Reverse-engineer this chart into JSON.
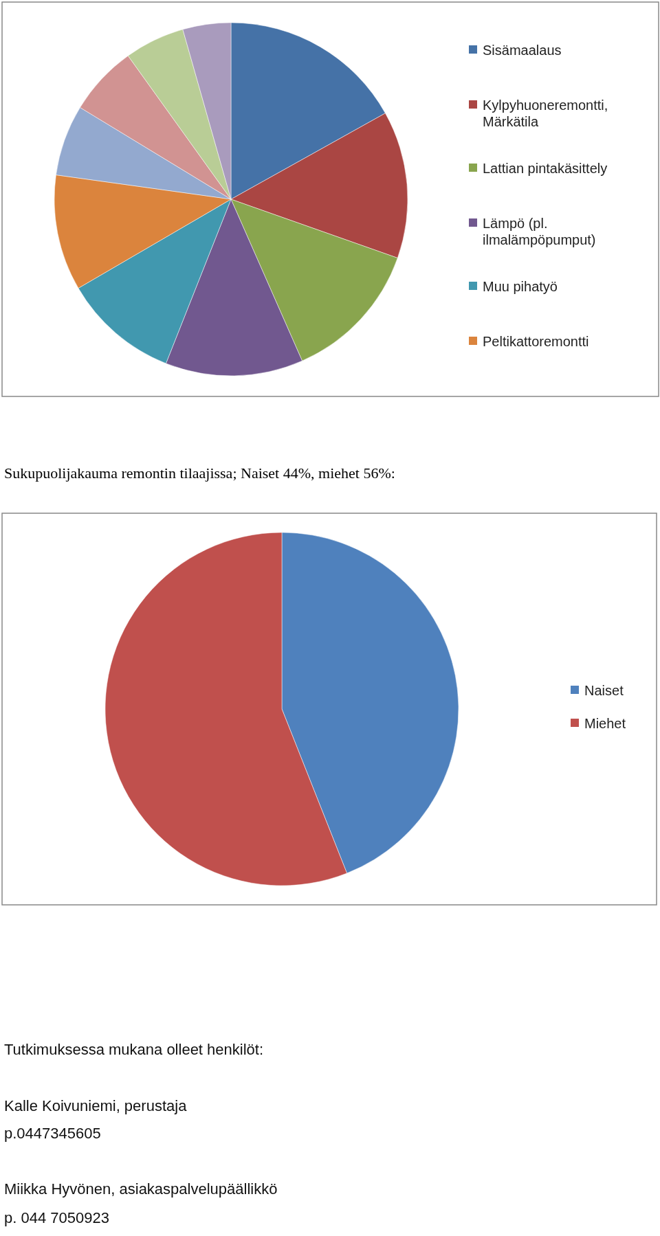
{
  "chart_data": [
    {
      "type": "pie",
      "categories": [
        "Sisämaalaus",
        "Kylpyhuoneremontti, Märkätila",
        "Lattian pintakäsittely",
        "Lämpö  (pl. ilmalämpöpumput)",
        "Muu pihatyö",
        "Peltikattoremontti",
        null,
        null,
        null,
        null
      ],
      "values": [
        16.9,
        13.5,
        13.0,
        12.6,
        10.6,
        10.6,
        6.5,
        6.4,
        5.5,
        4.4
      ],
      "colors": [
        "#4572a7",
        "#aa4643",
        "#89a54e",
        "#71588f",
        "#4198af",
        "#db843d",
        "#93a9cf",
        "#d19392",
        "#b9cd96",
        "#a99bbd"
      ],
      "legend": "right"
    },
    {
      "type": "pie",
      "title": "Sukupuolijakauma remontin tilaajissa; Naiset 44%, miehet 56%:",
      "categories": [
        "Naiset",
        "Miehet"
      ],
      "values": [
        44,
        56
      ],
      "colors": [
        "#4f81bd",
        "#c0504d"
      ],
      "legend": "right",
      "annotations": [
        "Tutkimuksessa mukana olleet henkilöt:",
        "Kalle Koivuniemi, perustaja",
        "p.0447345605",
        "Miikka Hyvönen, asiakaspalvelupäällikkö",
        "p. 044 7050923"
      ]
    }
  ]
}
